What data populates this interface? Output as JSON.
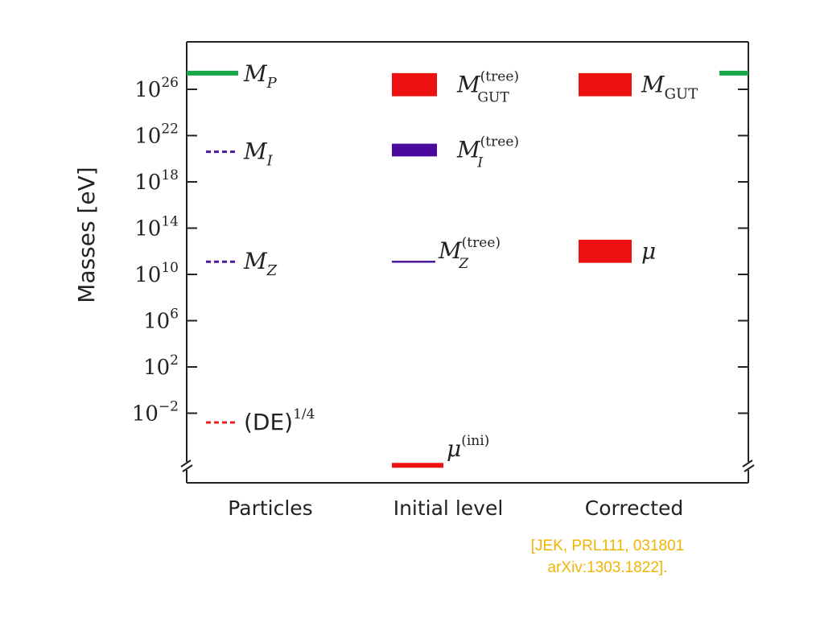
{
  "chart_data": {
    "type": "level-diagram",
    "ylabel": "Masses [eV]",
    "y_scale": "log10",
    "y_unit": "eV",
    "ylim_exp": [
      -6.5,
      29.5
    ],
    "y_ticks": [
      {
        "exp": -2,
        "label_base": "10",
        "label_exp": "−2"
      },
      {
        "exp": 2,
        "label_base": "10",
        "label_exp": "2"
      },
      {
        "exp": 6,
        "label_base": "10",
        "label_exp": "6"
      },
      {
        "exp": 10,
        "label_base": "10",
        "label_exp": "10"
      },
      {
        "exp": 14,
        "label_base": "10",
        "label_exp": "14"
      },
      {
        "exp": 18,
        "label_base": "10",
        "label_exp": "18"
      },
      {
        "exp": 22,
        "label_base": "10",
        "label_exp": "22"
      },
      {
        "exp": 26,
        "label_base": "10",
        "label_exp": "26"
      }
    ],
    "axis_break": true,
    "columns": [
      {
        "key": "particles",
        "label": "Particles"
      },
      {
        "key": "initial",
        "label": "Initial level"
      },
      {
        "key": "corrected",
        "label": "Corrected"
      }
    ],
    "levels": [
      {
        "name": "planck-mass",
        "column": "particles",
        "exp_low": 27.4,
        "exp_high": 27.4,
        "style": "solid",
        "color": "#1aa84a",
        "symbol": "M",
        "sub": "P",
        "sup": ""
      },
      {
        "name": "intermediate-mass",
        "column": "particles",
        "exp_low": 20.6,
        "exp_high": 20.6,
        "style": "dashed",
        "color": "#4b1a9e",
        "symbol": "M",
        "sub": "I",
        "sup": ""
      },
      {
        "name": "z-mass",
        "column": "particles",
        "exp_low": 11.1,
        "exp_high": 11.1,
        "style": "dashed",
        "color": "#4b1a9e",
        "symbol": "M",
        "sub": "Z",
        "sup": ""
      },
      {
        "name": "dark-energy-scale",
        "column": "particles",
        "exp_low": -2.8,
        "exp_high": -2.8,
        "style": "dashed",
        "color": "#e02020",
        "symbol": "(DE)",
        "sub": "",
        "sup": "1/4"
      },
      {
        "name": "gut-mass-tree",
        "column": "initial",
        "exp_low": 25.4,
        "exp_high": 27.4,
        "style": "band",
        "color": "#ee1111",
        "symbol": "M",
        "sub": "GUT",
        "sup": "(tree)"
      },
      {
        "name": "intermediate-mass-tree",
        "column": "initial",
        "exp_low": 20.2,
        "exp_high": 21.3,
        "style": "band",
        "color": "#4b0a9e",
        "symbol": "M",
        "sub": "I",
        "sup": "(tree)"
      },
      {
        "name": "z-mass-tree",
        "column": "initial",
        "exp_low": 11.1,
        "exp_high": 11.1,
        "style": "solid",
        "color": "#4b1a9e",
        "symbol": "M",
        "sub": "Z",
        "sup": "(tree)"
      },
      {
        "name": "mu-initial",
        "column": "initial",
        "exp_low": -6.5,
        "exp_high": -6.5,
        "style": "solid",
        "color": "#ee1111",
        "symbol": "μ",
        "sub": "",
        "sup": "(ini)"
      },
      {
        "name": "gut-mass",
        "column": "corrected",
        "exp_low": 25.4,
        "exp_high": 27.4,
        "style": "band",
        "color": "#ee1111",
        "symbol": "M",
        "sub": "GUT",
        "sup": ""
      },
      {
        "name": "mu",
        "column": "corrected",
        "exp_low": 11.0,
        "exp_high": 13.0,
        "style": "band",
        "color": "#ee1111",
        "symbol": "μ",
        "sub": "",
        "sup": ""
      }
    ],
    "right_marker": {
      "exp": 27.4,
      "color": "#1aa84a"
    },
    "grid": false,
    "legend": "none"
  },
  "citation": {
    "line1": "[JEK, PRL111, 031801",
    "line2": "arXiv:1303.1822]."
  }
}
